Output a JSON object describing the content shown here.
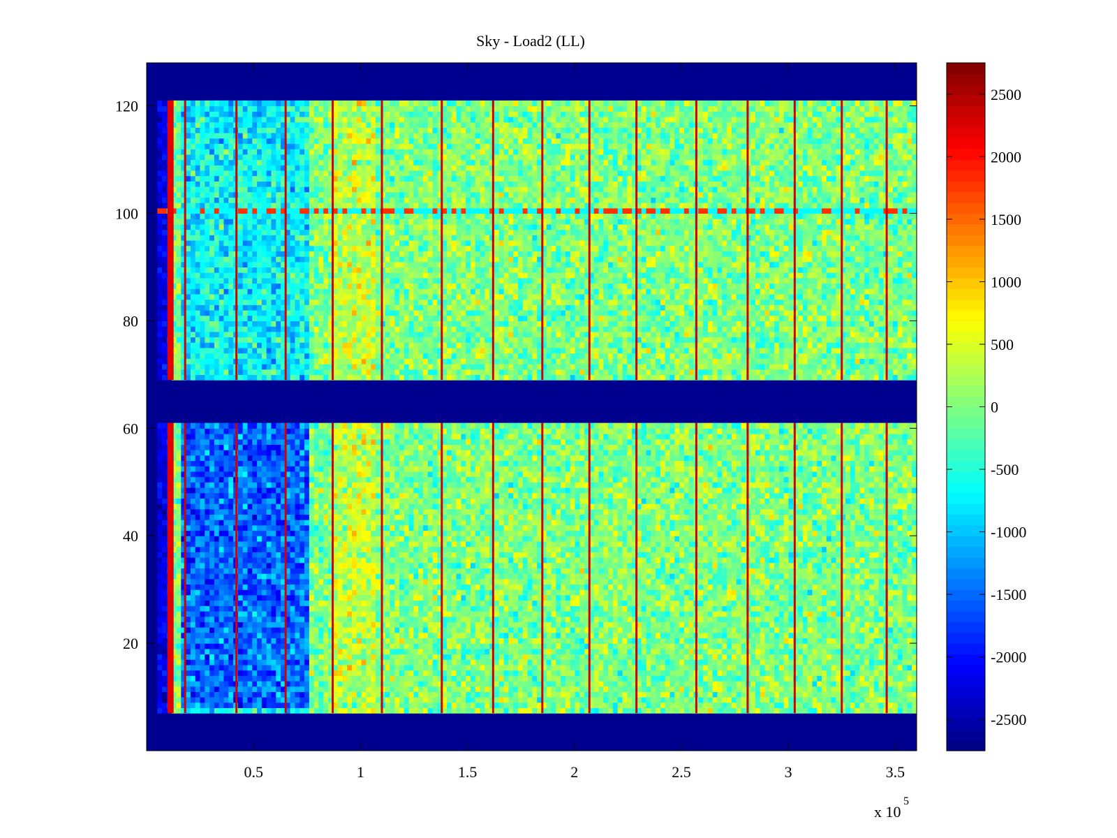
{
  "chart_data": {
    "type": "heatmap",
    "title": "Sky - Load2 (LL)",
    "xlabel": "",
    "ylabel": "",
    "x_multiplier_label": "x 10",
    "x_multiplier_exponent": "5",
    "xlim": [
      0,
      3.6
    ],
    "ylim": [
      0,
      128
    ],
    "x_ticks": [
      {
        "value": 0.5,
        "label": "0.5"
      },
      {
        "value": 1,
        "label": "1"
      },
      {
        "value": 1.5,
        "label": "1.5"
      },
      {
        "value": 2,
        "label": "2"
      },
      {
        "value": 2.5,
        "label": "2.5"
      },
      {
        "value": 3,
        "label": "3"
      },
      {
        "value": 3.5,
        "label": "3.5"
      }
    ],
    "y_ticks": [
      {
        "value": 20,
        "label": "20"
      },
      {
        "value": 40,
        "label": "40"
      },
      {
        "value": 60,
        "label": "60"
      },
      {
        "value": 80,
        "label": "80"
      },
      {
        "value": 100,
        "label": "100"
      },
      {
        "value": 120,
        "label": "120"
      }
    ],
    "colorbar": {
      "colormap": "jet",
      "range": [
        -2750,
        2750
      ],
      "ticks": [
        {
          "value": 2500,
          "label": "2500"
        },
        {
          "value": 2000,
          "label": "2000"
        },
        {
          "value": 1500,
          "label": "1500"
        },
        {
          "value": 1000,
          "label": "1000"
        },
        {
          "value": 500,
          "label": "500"
        },
        {
          "value": 0,
          "label": "0"
        },
        {
          "value": -500,
          "label": "-500"
        },
        {
          "value": -1000,
          "label": "-1000"
        },
        {
          "value": -1500,
          "label": "-1500"
        },
        {
          "value": -2000,
          "label": "-2000"
        },
        {
          "value": -2500,
          "label": "-2500"
        }
      ]
    },
    "background_value": -2750,
    "data_row_bands": [
      [
        7,
        61
      ],
      [
        69,
        121
      ]
    ],
    "data_x_start": 0.05,
    "blue_edge_x_end": 0.1,
    "red_stripe_x": 0.11,
    "vertical_streak_x": [
      0.18,
      0.42,
      0.65,
      0.87,
      1.1,
      1.38,
      1.62,
      1.85,
      2.07,
      2.29,
      2.57,
      2.81,
      3.03,
      3.25,
      3.46
    ],
    "bright_row_y": 100,
    "low_region": {
      "x_range": [
        0.15,
        0.75
      ],
      "y_range": [
        8,
        60
      ],
      "typical_value": -1500
    },
    "typical_value": 0
  },
  "colors": {
    "background_low": "#00008F",
    "axes": "#000000"
  }
}
